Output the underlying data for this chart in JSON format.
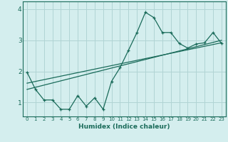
{
  "xlabel": "Humidex (Indice chaleur)",
  "bg_color": "#d4eeee",
  "grid_color": "#b0d4d4",
  "line_color": "#1a6b5a",
  "xlim": [
    -0.5,
    23.5
  ],
  "ylim": [
    0.55,
    4.25
  ],
  "yticks": [
    1,
    2,
    3,
    4
  ],
  "xticks": [
    0,
    1,
    2,
    3,
    4,
    5,
    6,
    7,
    8,
    9,
    10,
    11,
    12,
    13,
    14,
    15,
    16,
    17,
    18,
    19,
    20,
    21,
    22,
    23
  ],
  "series1_x": [
    0,
    1,
    2,
    3,
    4,
    5,
    6,
    7,
    8,
    9,
    10,
    11,
    12,
    13,
    14,
    15,
    16,
    17,
    18,
    19,
    20,
    21,
    22,
    23
  ],
  "series1_y": [
    1.97,
    1.42,
    1.08,
    1.08,
    0.78,
    0.78,
    1.22,
    0.88,
    1.15,
    0.78,
    1.68,
    2.12,
    2.68,
    3.25,
    3.9,
    3.73,
    3.25,
    3.25,
    2.9,
    2.75,
    2.88,
    2.92,
    3.25,
    2.9
  ],
  "series2_x": [
    0,
    23
  ],
  "series2_y": [
    1.42,
    3.0
  ],
  "series3_x": [
    0,
    23
  ],
  "series3_y": [
    1.62,
    2.92
  ]
}
